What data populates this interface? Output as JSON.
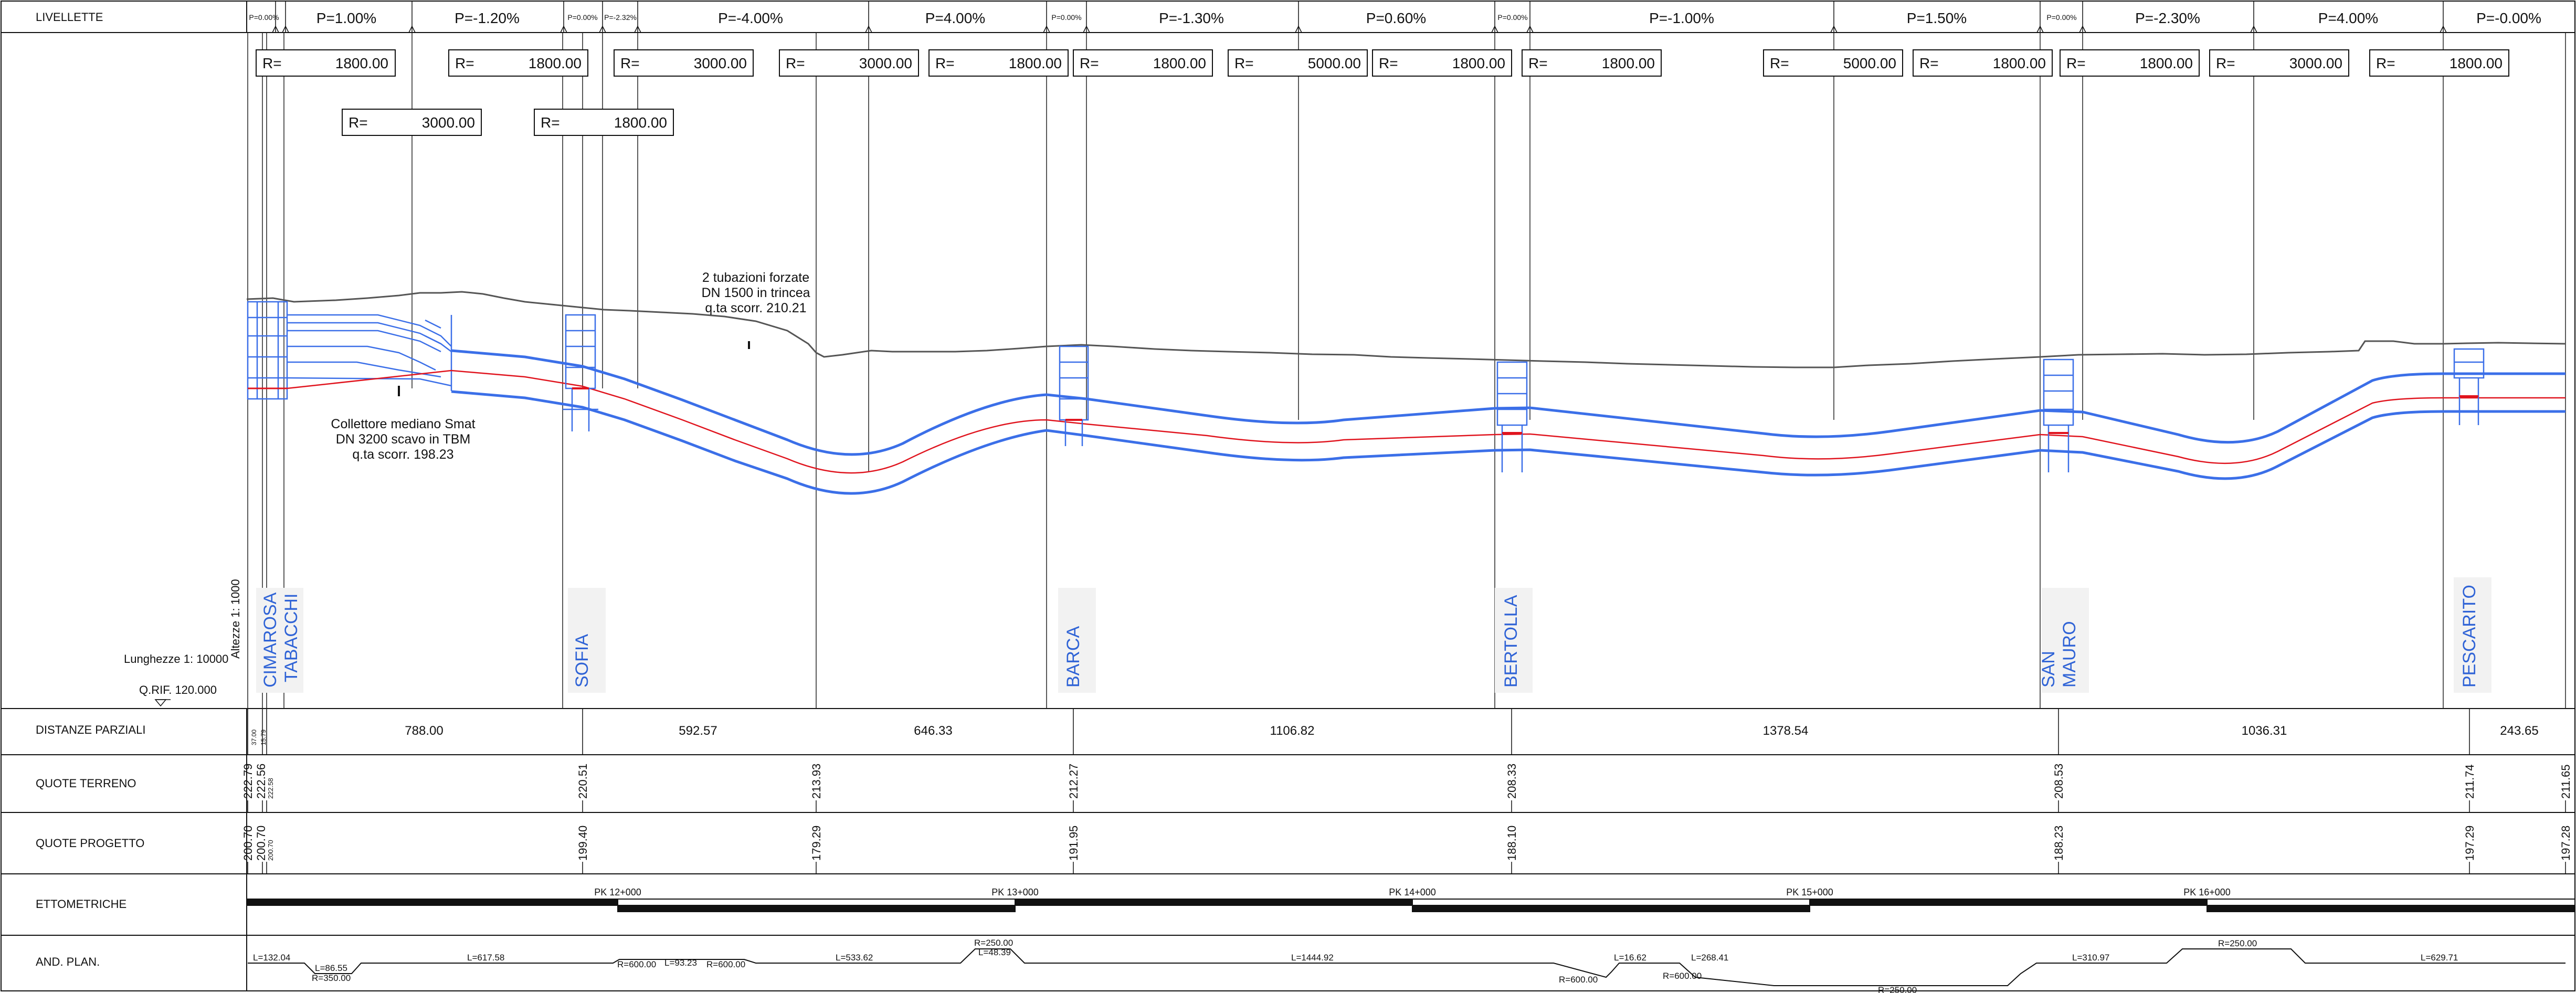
{
  "livellette": {
    "label": "LIVELLETTE",
    "slopes": [
      "P=0.00%",
      "P=1.00%",
      "P=-1.20%",
      "P=0.00%",
      "P=-2.32%",
      "P=-4.00%",
      "P=4.00%",
      "P=0.00%",
      "P=-1.30%",
      "P=0.60%",
      "P=0.00%",
      "P=-1.00%",
      "P=1.50%",
      "P=0.00%",
      "P=-2.30%",
      "P=4.00%",
      "P=-0.00%"
    ]
  },
  "radius": {
    "prefix": "R=",
    "row1": [
      "1800.00",
      "1800.00",
      "3000.00",
      "3000.00",
      "1800.00",
      "1800.00",
      "5000.00",
      "1800.00",
      "1800.00",
      "5000.00",
      "1800.00",
      "1800.00",
      "3000.00",
      "1800.00"
    ],
    "row2": [
      "3000.00",
      "1800.00"
    ]
  },
  "annotations": {
    "pipes": [
      "2 tubazioni forzate",
      "DN 1500  in trincea",
      "q.ta scorr. 210.21"
    ],
    "collector": [
      "Collettore mediano Smat",
      "DN 3200 scavo in TBM",
      "q.ta scorr.  198.23"
    ]
  },
  "stations": [
    {
      "name": "CIMAROSA"
    },
    {
      "name": "TABACCHI"
    },
    {
      "name": "SOFIA"
    },
    {
      "name": "BARCA"
    },
    {
      "name": "BERTOLLA"
    },
    {
      "name": "SAN"
    },
    {
      "name": "MAURO"
    },
    {
      "name": "PESCARITO"
    }
  ],
  "scales": {
    "heights": "Altezze 1: 1000",
    "lengths": "Lunghezze 1: 10000",
    "reference": "Q.RIF. 120.000"
  },
  "rows": {
    "distanze": {
      "label": "DISTANZE PARZIALI",
      "small_values": [
        "37.00",
        "15.79"
      ],
      "values": [
        "788.00",
        "592.57",
        "646.33",
        "1106.82",
        "1378.54",
        "1036.31",
        "243.65"
      ]
    },
    "terreno": {
      "label": "QUOTE TERRENO",
      "values": [
        "222.79",
        "222.56",
        "222.58",
        "220.51",
        "213.93",
        "212.27",
        "208.33",
        "208.53",
        "211.74",
        "211.65"
      ]
    },
    "progetto": {
      "label": "QUOTE PROGETTO",
      "values": [
        "200.70",
        "200.70",
        "200.70",
        "199.40",
        "179.29",
        "191.95",
        "188.10",
        "188.23",
        "197.29",
        "197.28"
      ]
    },
    "ettometriche": {
      "label": "ETTOMETRICHE",
      "marks": [
        "PK 12+000",
        "PK 13+000",
        "PK 14+000",
        "PK 15+000",
        "PK 16+000"
      ]
    },
    "andamento": {
      "label": "AND. PLAN.",
      "items": [
        "L=132.04",
        "L=86.55",
        "R=350.00",
        "L=617.58",
        "R=600.00",
        "L=93.23",
        "R=600.00",
        "L=533.62",
        "R=250.00",
        "L=48.39",
        "L=1444.92",
        "R=600.00",
        "L=16.62",
        "R=600.00",
        "L=268.41",
        "R=250.00",
        "L=310.97",
        "R=250.00",
        "L=629.71"
      ]
    }
  },
  "colors": {
    "pipe": "#3B6FE8",
    "axis": "#E0141E",
    "terrain": "#555555",
    "line": "#111111",
    "station": "#2F63D6"
  }
}
